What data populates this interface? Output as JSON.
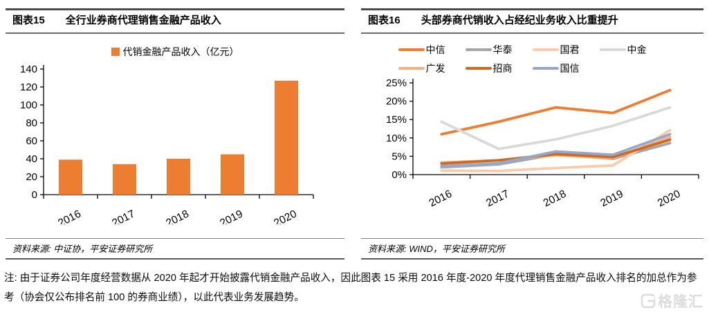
{
  "left_panel": {
    "figure_no": "图表15",
    "title": "全行业券商代理销售金融产品收入",
    "source": "资料来源: 中证协，平安证券研究所"
  },
  "right_panel": {
    "figure_no": "图表16",
    "title": "头部券商代销收入占经纪业务收入比重提升",
    "source": "资料来源: WIND，平安证券研究所"
  },
  "note": {
    "text": "注: 由于证券公司年度经营数据从 2020 年起才开始披露代销金融产品收入，因此图表 15 采用 2016 年度-2020 年度代理销售金融产品收入排名的加总作为参考（协会仅公布排名前 100 的券商业绩），以此代表业务发展趋势。"
  },
  "watermark": {
    "text": "格隆汇"
  },
  "colors": {
    "bar_orange": "#ED7D31",
    "rule_dark": "#4a4a4a",
    "rule_mid": "#6e6e6e",
    "watermark_gray": "#dcdcdc"
  },
  "chart_data": [
    {
      "type": "bar",
      "title": "全行业券商代理销售金融产品收入",
      "legend": "代销金融产品收入（亿元）",
      "categories": [
        "2016",
        "2017",
        "2018",
        "2019",
        "2020"
      ],
      "values": [
        39,
        34,
        40,
        45,
        127
      ],
      "ylim": [
        0,
        140
      ],
      "ytick_step": 20,
      "ytick_suffix": "",
      "bar_color": "#ED7D31",
      "grid": false,
      "legend_position": "top"
    },
    {
      "type": "line",
      "title": "头部券商代销收入占经纪业务收入比重提升",
      "categories": [
        "2016",
        "2017",
        "2018",
        "2019",
        "2020"
      ],
      "series": [
        {
          "name": "中信",
          "color": "#ED7D31",
          "values": [
            11.0,
            14.4,
            18.3,
            16.8,
            23.0
          ]
        },
        {
          "name": "华泰",
          "color": "#A6A6A6",
          "values": [
            2.0,
            2.8,
            5.5,
            4.3,
            8.6
          ]
        },
        {
          "name": "国君",
          "color": "#F8CBAD",
          "values": [
            1.1,
            1.0,
            1.8,
            2.5,
            12.1
          ]
        },
        {
          "name": "中金",
          "color": "#D9D9D9",
          "values": [
            14.4,
            7.0,
            9.6,
            13.3,
            18.3
          ]
        },
        {
          "name": "广发",
          "color": "#F4B183",
          "values": [
            3.3,
            3.9,
            5.3,
            4.5,
            10.2
          ]
        },
        {
          "name": "招商",
          "color": "#CC6A20",
          "values": [
            3.0,
            3.9,
            5.6,
            4.8,
            9.5
          ]
        },
        {
          "name": "国信",
          "color": "#95A8CC",
          "values": [
            2.3,
            3.1,
            6.3,
            5.4,
            11.0
          ]
        }
      ],
      "ylim": [
        0,
        25
      ],
      "ytick_step": 5,
      "ytick_suffix": "%",
      "grid": false,
      "legend_position": "top"
    }
  ]
}
